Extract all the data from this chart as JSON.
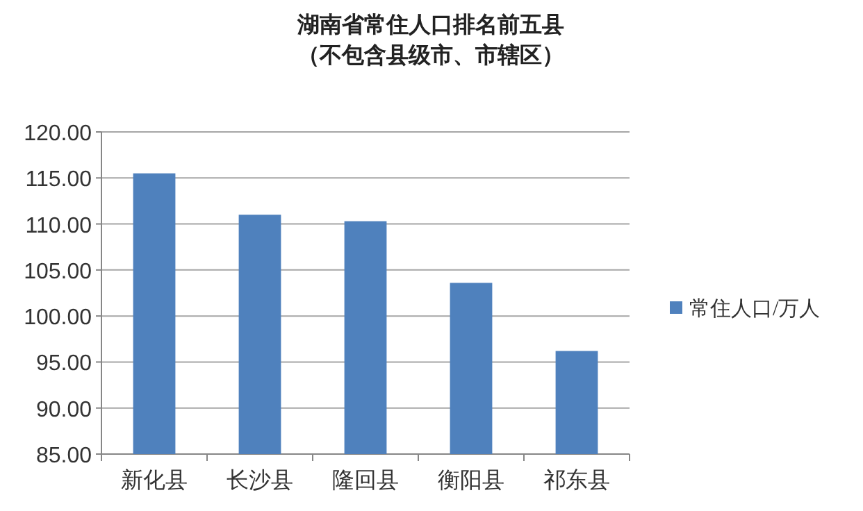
{
  "chart_data": {
    "type": "bar",
    "title": "湖南省常住人口排名前五县",
    "subtitle": "（不包含县级市、市辖区）",
    "categories": [
      "新化县",
      "长沙县",
      "隆回县",
      "衡阳县",
      "祁东县"
    ],
    "series": [
      {
        "name": "常住人口/万人",
        "color": "#4f81bd",
        "values": [
          115.5,
          111.0,
          110.3,
          103.6,
          96.2
        ]
      }
    ],
    "ylim": [
      85,
      120
    ],
    "yticks": [
      {
        "value": 85,
        "label": "85.00"
      },
      {
        "value": 90,
        "label": "90.00"
      },
      {
        "value": 95,
        "label": "95.00"
      },
      {
        "value": 100,
        "label": "100.00"
      },
      {
        "value": 105,
        "label": "105.00"
      },
      {
        "value": 110,
        "label": "110.00"
      },
      {
        "value": 115,
        "label": "115.00"
      },
      {
        "value": 120,
        "label": "120.00"
      }
    ],
    "grid": "y",
    "legend": "right"
  }
}
